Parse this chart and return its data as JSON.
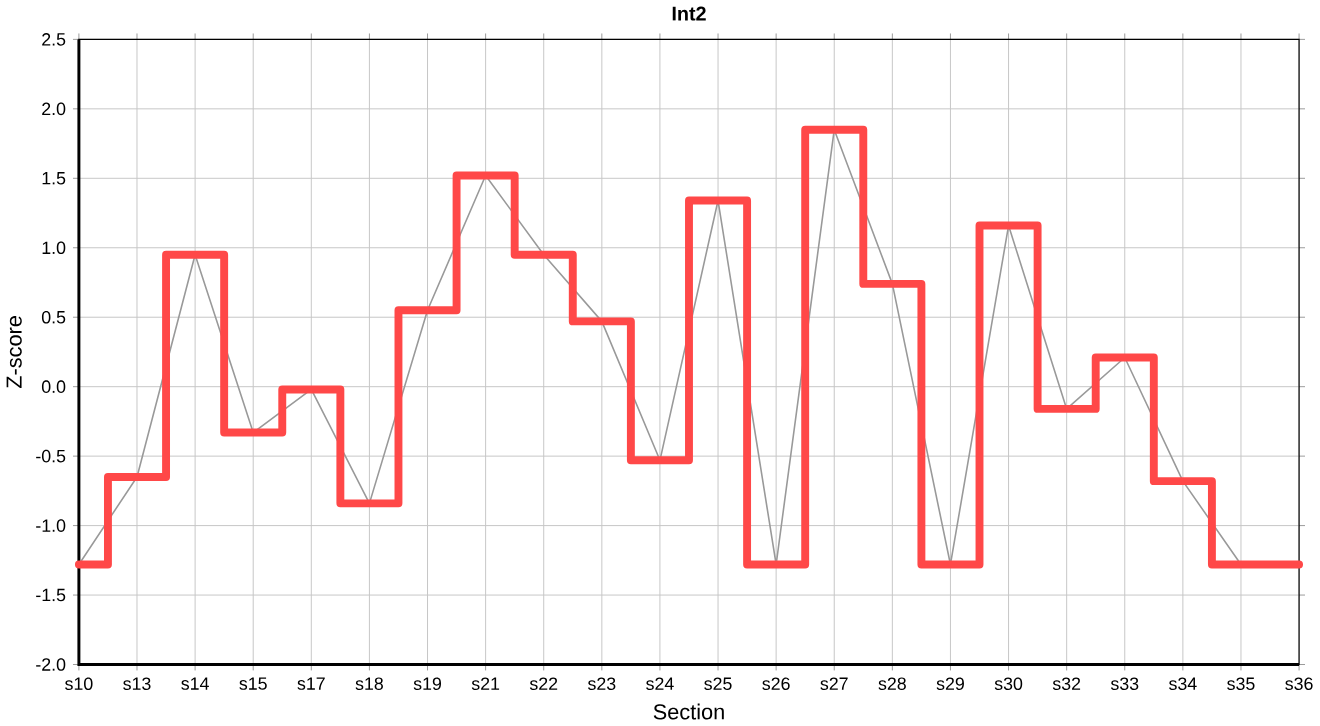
{
  "chart_data": {
    "type": "step",
    "title": "Int2",
    "xlabel": "Section",
    "ylabel": "Z-score",
    "categories": [
      "s10",
      "s13",
      "s14",
      "s15",
      "s17",
      "s18",
      "s19",
      "s21",
      "s22",
      "s23",
      "s24",
      "s25",
      "s26",
      "s27",
      "s28",
      "s29",
      "s30",
      "s32",
      "s33",
      "s34",
      "s35",
      "s36"
    ],
    "series": [
      {
        "type": "line",
        "color": "#999999",
        "values": [
          -1.28,
          -0.65,
          0.95,
          -0.33,
          -0.02,
          -0.84,
          0.55,
          1.52,
          0.95,
          0.47,
          -0.53,
          1.34,
          -1.28,
          1.85,
          0.74,
          -1.28,
          1.16,
          -0.16,
          0.21,
          -0.68,
          -1.28,
          -1.28
        ]
      },
      {
        "color": "#ff4848",
        "values": [
          -1.28,
          -0.65,
          0.95,
          -0.33,
          -0.02,
          -0.84,
          0.55,
          1.52,
          0.95,
          0.47,
          -0.53,
          1.34,
          -1.28,
          1.85,
          0.74,
          -1.28,
          1.16,
          -0.16,
          0.21,
          -0.68,
          -1.28,
          -1.28
        ]
      }
    ],
    "ylim": [
      -2.0,
      2.5
    ],
    "yticks": [
      {
        "value": -2.0,
        "label": "-2.0"
      },
      {
        "value": -1.5,
        "label": "-1.5"
      },
      {
        "value": -1.0,
        "label": "-1.0"
      },
      {
        "value": -0.5,
        "label": "-0.5"
      },
      {
        "value": 0.0,
        "label": "0.0"
      },
      {
        "value": 0.5,
        "label": "0.5"
      },
      {
        "value": 1.0,
        "label": "1.0"
      },
      {
        "value": 1.5,
        "label": "1.5"
      },
      {
        "value": 2.0,
        "label": "2.0"
      },
      {
        "value": 2.5,
        "label": "2.5"
      }
    ],
    "grid": true,
    "marker": "none",
    "line_style": "solid"
  }
}
